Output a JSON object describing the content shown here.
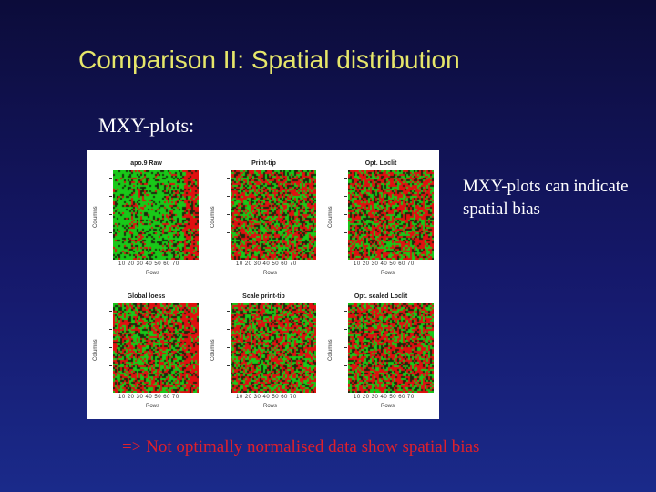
{
  "slide": {
    "title": "Comparison II: Spatial distribution",
    "subtitle": "MXY-plots:",
    "note": "MXY-plots can indicate spatial bias",
    "footer": "=> Not optimally normalised data show spatial bias"
  },
  "figure": {
    "colors": {
      "green": "#18c818",
      "red": "#e01010",
      "dark": "#1c2a0c"
    },
    "panels": [
      {
        "title": "apo.9 Raw",
        "ylabel": "Columns",
        "xlabel": "Rows",
        "xticks": "10 20 30 40 50 60 70",
        "green_bias": 0.85
      },
      {
        "title": "Print-tip",
        "ylabel": "Columns",
        "xlabel": "Rows",
        "xticks": "10 20 30 40 50 60 70",
        "green_bias": 0.45
      },
      {
        "title": "Opt. Loclit",
        "ylabel": "Columns",
        "xlabel": "Rows",
        "xticks": "10 20 30 40 50 60 70",
        "green_bias": 0.4
      },
      {
        "title": "Global loess",
        "ylabel": "Columns",
        "xlabel": "Rows",
        "xticks": "10 20 30 40 50 60 70",
        "green_bias": 0.5
      },
      {
        "title": "Scale print-tip",
        "ylabel": "Columns",
        "xlabel": "Rows",
        "xticks": "10 20 30 40 50 60 70",
        "green_bias": 0.45
      },
      {
        "title": "Opt. scaled Loclit",
        "ylabel": "Columns",
        "xlabel": "Rows",
        "xticks": "10 20 30 40 50 60 70",
        "green_bias": 0.4
      }
    ]
  }
}
